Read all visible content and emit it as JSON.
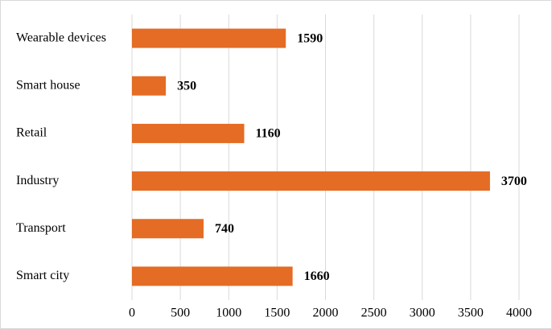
{
  "chart_data": {
    "type": "bar",
    "orientation": "horizontal",
    "categories": [
      "Wearable devices",
      "Smart house",
      "Retail",
      "Industry",
      "Transport",
      "Smart city"
    ],
    "values": [
      1590,
      350,
      1160,
      3700,
      740,
      1660
    ],
    "color": "#e46c24",
    "xlim": [
      0,
      4000
    ],
    "xticks": [
      0,
      500,
      1000,
      1500,
      2000,
      2500,
      3000,
      3500,
      4000
    ],
    "grid": true
  }
}
